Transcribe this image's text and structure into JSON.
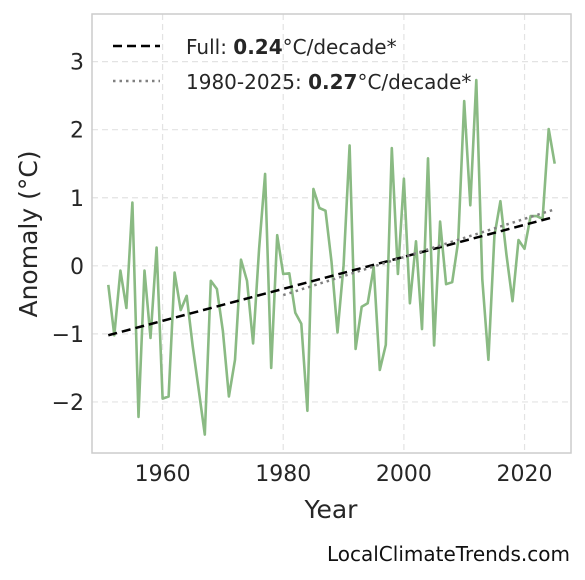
{
  "chart_data": {
    "type": "line",
    "xlabel": "Year",
    "ylabel": "Anomaly (°C)",
    "xlim": [
      1948.3,
      2027.7
    ],
    "ylim": [
      -2.75,
      3.7
    ],
    "xticks": [
      1960,
      1980,
      2000,
      2020
    ],
    "yticks": [
      -2,
      -1,
      0,
      1,
      2,
      3
    ],
    "grid": true,
    "legend_position": "top-left",
    "series": [
      {
        "color": "#8aba83",
        "x": [
          1951,
          1952,
          1953,
          1954,
          1955,
          1956,
          1957,
          1958,
          1959,
          1960,
          1961,
          1962,
          1963,
          1964,
          1965,
          1966,
          1967,
          1968,
          1969,
          1970,
          1971,
          1972,
          1973,
          1974,
          1975,
          1976,
          1977,
          1978,
          1979,
          1980,
          1981,
          1982,
          1983,
          1984,
          1985,
          1986,
          1987,
          1988,
          1989,
          1990,
          1991,
          1992,
          1993,
          1994,
          1995,
          1996,
          1997,
          1998,
          1999,
          2000,
          2001,
          2002,
          2003,
          2004,
          2005,
          2006,
          2007,
          2008,
          2009,
          2010,
          2011,
          2012,
          2013,
          2014,
          2015,
          2016,
          2017,
          2018,
          2019,
          2020,
          2021,
          2022,
          2023,
          2024,
          2025
        ],
        "y": [
          -0.28,
          -1.02,
          -0.07,
          -0.62,
          0.93,
          -2.22,
          -0.07,
          -1.06,
          0.27,
          -1.95,
          -1.92,
          -0.1,
          -0.65,
          -0.44,
          -1.18,
          -1.83,
          -2.48,
          -0.22,
          -0.34,
          -0.96,
          -1.92,
          -1.38,
          0.09,
          -0.22,
          -1.14,
          0.25,
          1.35,
          -1.5,
          0.45,
          -0.12,
          -0.11,
          -0.69,
          -0.85,
          -2.13,
          1.13,
          0.85,
          0.81,
          0.06,
          -0.98,
          0.01,
          1.77,
          -1.22,
          -0.6,
          -0.55,
          -0.02,
          -1.53,
          -1.16,
          1.73,
          -0.12,
          1.28,
          -0.55,
          0.36,
          -0.93,
          1.58,
          -1.17,
          0.65,
          -0.27,
          -0.24,
          0.36,
          2.42,
          0.89,
          2.73,
          -0.2,
          -1.38,
          0.44,
          0.95,
          0.17,
          -0.52,
          0.38,
          0.25,
          0.73,
          0.73,
          0.69,
          2.01,
          1.5
        ]
      }
    ],
    "trend_lines": [
      {
        "label": "Full: ",
        "value_bold": "0.24",
        "unit": "°C/decade*",
        "style": "dashed",
        "color": "#000000",
        "x": [
          1951,
          2025
        ],
        "y": [
          -1.02,
          0.72
        ]
      },
      {
        "label": "1980-2025: ",
        "value_bold": "0.27",
        "unit": "°C/decade*",
        "style": "dotted",
        "color": "#808080",
        "x": [
          1980,
          2025
        ],
        "y": [
          -0.43,
          0.83
        ]
      }
    ],
    "watermark": "LocalClimateTrends.com"
  }
}
